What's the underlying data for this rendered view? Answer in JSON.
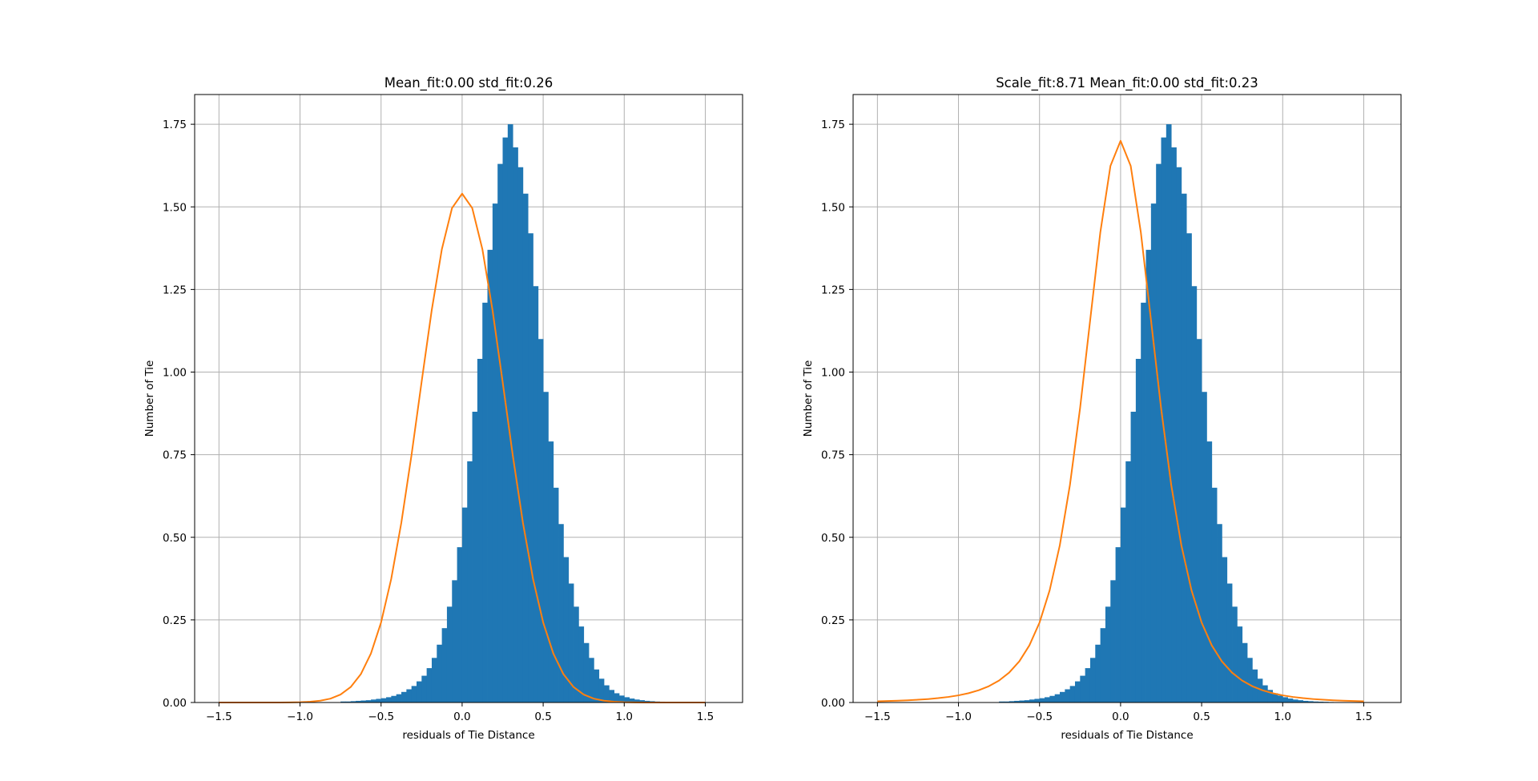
{
  "figure": {
    "background": "#ffffff",
    "bar_color": "#1f77b4",
    "fit_color": "#ff7f0e",
    "grid_color": "#b0b0b0"
  },
  "chart_data": [
    {
      "type": "bar",
      "subtype": "histogram-with-fit",
      "title": "Mean_fit:0.00   std_fit:0.26",
      "xlabel": "residuals of Tie Distance",
      "ylabel": "Number of Tie",
      "xlim": [
        -1.65,
        1.73
      ],
      "ylim": [
        0,
        1.84
      ],
      "xticks": [
        -1.5,
        -1.0,
        -0.5,
        0.0,
        0.5,
        1.0,
        1.5
      ],
      "xtick_labels": [
        "−1.5",
        "−1.0",
        "−0.5",
        "0.0",
        "0.5",
        "1.0",
        "1.5"
      ],
      "yticks": [
        0,
        0.25,
        0.5,
        0.75,
        1.0,
        1.25,
        1.5,
        1.75
      ],
      "ytick_labels": [
        "0.00",
        "0.25",
        "0.50",
        "0.75",
        "1.00",
        "1.25",
        "1.50",
        "1.75"
      ],
      "grid": true,
      "fit": {
        "amp": 1.54,
        "mean": 0.0,
        "std": 0.26,
        "shape": "gaussian",
        "x_range": [
          -1.5,
          1.5
        ],
        "step": 0.0625
      },
      "bins": {
        "x_start": -1.5,
        "width": 0.03125,
        "heights": [
          0.0,
          0.0,
          0.0,
          0.0,
          0.0,
          0.0,
          0.0,
          0.0,
          0.0,
          0.0,
          0.0,
          0.0,
          0.0,
          0.0,
          0.0,
          0.0,
          0.0,
          0.0,
          0.0,
          0.0,
          0.0,
          0.0,
          0.0,
          0.0,
          0.003,
          0.003,
          0.004,
          0.005,
          0.006,
          0.007,
          0.009,
          0.011,
          0.013,
          0.016,
          0.02,
          0.025,
          0.032,
          0.04,
          0.05,
          0.064,
          0.081,
          0.104,
          0.135,
          0.175,
          0.225,
          0.29,
          0.37,
          0.47,
          0.59,
          0.73,
          0.88,
          1.04,
          1.21,
          1.37,
          1.51,
          1.63,
          1.71,
          1.75,
          1.68,
          1.62,
          1.54,
          1.42,
          1.26,
          1.1,
          0.94,
          0.79,
          0.65,
          0.54,
          0.44,
          0.36,
          0.29,
          0.23,
          0.18,
          0.135,
          0.1,
          0.072,
          0.052,
          0.038,
          0.028,
          0.021,
          0.016,
          0.012,
          0.009,
          0.007,
          0.005,
          0.004,
          0.003,
          0.0025,
          0.002,
          0.0015,
          0.001,
          0.0008,
          0.0006,
          0.0005,
          0.0003,
          0.0002,
          0.0,
          0.0,
          0.0,
          0.0,
          0.0
        ]
      }
    },
    {
      "type": "bar",
      "subtype": "histogram-with-fit",
      "title": "Scale_fit:8.71   Mean_fit:0.00   std_fit:0.23",
      "xlabel": "residuals of Tie Distance",
      "ylabel": "Number of Tie",
      "xlim": [
        -1.65,
        1.73
      ],
      "ylim": [
        0,
        1.84
      ],
      "xticks": [
        -1.5,
        -1.0,
        -0.5,
        0.0,
        0.5,
        1.0,
        1.5
      ],
      "xtick_labels": [
        "−1.5",
        "−1.0",
        "−0.5",
        "0.0",
        "0.5",
        "1.0",
        "1.5"
      ],
      "yticks": [
        0,
        0.25,
        0.5,
        0.75,
        1.0,
        1.25,
        1.5,
        1.75
      ],
      "ytick_labels": [
        "0.00",
        "0.25",
        "0.50",
        "0.75",
        "1.00",
        "1.25",
        "1.50",
        "1.75"
      ],
      "grid": true,
      "fit": {
        "amp": 1.7,
        "mean": 0.0,
        "std": 0.23,
        "shape": "student-t",
        "x_range": [
          -1.5,
          1.5
        ],
        "step": 0.0625
      },
      "bins": {
        "x_start": -1.5,
        "width": 0.03125,
        "heights": [
          0.0,
          0.0,
          0.0,
          0.0,
          0.0,
          0.0,
          0.0,
          0.0,
          0.0,
          0.0,
          0.0,
          0.0,
          0.0,
          0.0,
          0.0,
          0.0,
          0.0,
          0.0,
          0.0,
          0.0,
          0.0,
          0.0,
          0.0,
          0.0,
          0.003,
          0.003,
          0.004,
          0.005,
          0.006,
          0.007,
          0.009,
          0.011,
          0.013,
          0.016,
          0.02,
          0.025,
          0.032,
          0.04,
          0.05,
          0.064,
          0.081,
          0.104,
          0.135,
          0.175,
          0.225,
          0.29,
          0.37,
          0.47,
          0.59,
          0.73,
          0.88,
          1.04,
          1.21,
          1.37,
          1.51,
          1.63,
          1.71,
          1.75,
          1.68,
          1.62,
          1.54,
          1.42,
          1.26,
          1.1,
          0.94,
          0.79,
          0.65,
          0.54,
          0.44,
          0.36,
          0.29,
          0.23,
          0.18,
          0.135,
          0.1,
          0.072,
          0.052,
          0.038,
          0.028,
          0.021,
          0.016,
          0.012,
          0.009,
          0.007,
          0.005,
          0.004,
          0.003,
          0.0025,
          0.002,
          0.0015,
          0.001,
          0.0008,
          0.0006,
          0.0005,
          0.0003,
          0.0002,
          0.0,
          0.0,
          0.0,
          0.0,
          0.0
        ]
      }
    }
  ]
}
